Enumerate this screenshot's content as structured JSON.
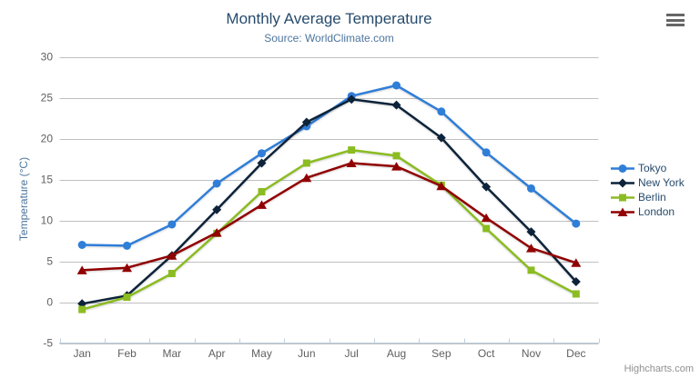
{
  "colors": {
    "title": "#274b6d",
    "subtitle": "#4d759e",
    "axis_title": "#4d759e",
    "axis_labels": "#606060",
    "grid_line": "#c0c0c0",
    "axis_line": "#c0d0e0",
    "legend_text": "#274b6d",
    "credit": "#909090",
    "burger_icon": "#666666"
  },
  "credit": "Highcharts.com",
  "chart_data": {
    "type": "line",
    "title": "Monthly Average Temperature",
    "subtitle": "Source: WorldClimate.com",
    "xlabel": "",
    "ylabel": "Temperature (°C)",
    "ylim": [
      -5,
      30
    ],
    "yticks": [
      -5,
      0,
      5,
      10,
      15,
      20,
      25,
      30
    ],
    "grid": "horizontal",
    "legend_position": "right",
    "categories": [
      "Jan",
      "Feb",
      "Mar",
      "Apr",
      "May",
      "Jun",
      "Jul",
      "Aug",
      "Sep",
      "Oct",
      "Nov",
      "Dec"
    ],
    "series": [
      {
        "name": "Tokyo",
        "color": "#2f7ed8",
        "marker": "circle",
        "values": [
          7.0,
          6.9,
          9.5,
          14.5,
          18.2,
          21.5,
          25.2,
          26.5,
          23.3,
          18.3,
          13.9,
          9.6
        ]
      },
      {
        "name": "New York",
        "color": "#0d233a",
        "marker": "diamond",
        "values": [
          -0.2,
          0.8,
          5.7,
          11.3,
          17.0,
          22.0,
          24.8,
          24.1,
          20.1,
          14.1,
          8.6,
          2.5
        ]
      },
      {
        "name": "Berlin",
        "color": "#8bbc21",
        "marker": "square",
        "values": [
          -0.9,
          0.6,
          3.5,
          8.4,
          13.5,
          17.0,
          18.6,
          17.9,
          14.3,
          9.0,
          3.9,
          1.0
        ]
      },
      {
        "name": "London",
        "color": "#910000",
        "marker": "triangle",
        "values": [
          3.9,
          4.2,
          5.7,
          8.5,
          11.9,
          15.2,
          17.0,
          16.6,
          14.2,
          10.3,
          6.6,
          4.8
        ]
      }
    ]
  }
}
